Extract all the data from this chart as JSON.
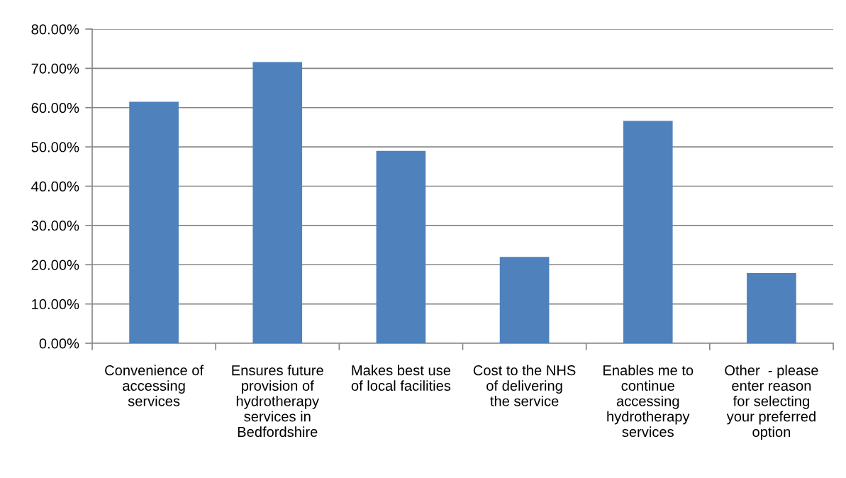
{
  "chart_data": {
    "type": "bar",
    "categories": [
      "Convenience of\naccessing\nservices",
      "Ensures future\nprovision of\nhydrotherapy\nservices in\nBedfordshire",
      "Makes best use\nof local facilities",
      "Cost to the NHS\nof delivering\nthe service",
      "Enables me to\ncontinue\naccessing\nhydrotherapy\nservices",
      "Other  - please\nenter reason\nfor selecting\nyour preferred\noption"
    ],
    "values": [
      61.5,
      71.6,
      49.0,
      22.0,
      56.6,
      17.9
    ],
    "color": "#4f81bd",
    "ylim": [
      0,
      80
    ],
    "yticks": [
      {
        "value": 0,
        "label": "0.00%"
      },
      {
        "value": 10,
        "label": "10.00%"
      },
      {
        "value": 20,
        "label": "20.00%"
      },
      {
        "value": 30,
        "label": "30.00%"
      },
      {
        "value": 40,
        "label": "40.00%"
      },
      {
        "value": 50,
        "label": "50.00%"
      },
      {
        "value": 60,
        "label": "60.00%"
      },
      {
        "value": 70,
        "label": "70.00%"
      },
      {
        "value": 80,
        "label": "80.00%"
      }
    ],
    "grid": "y"
  }
}
